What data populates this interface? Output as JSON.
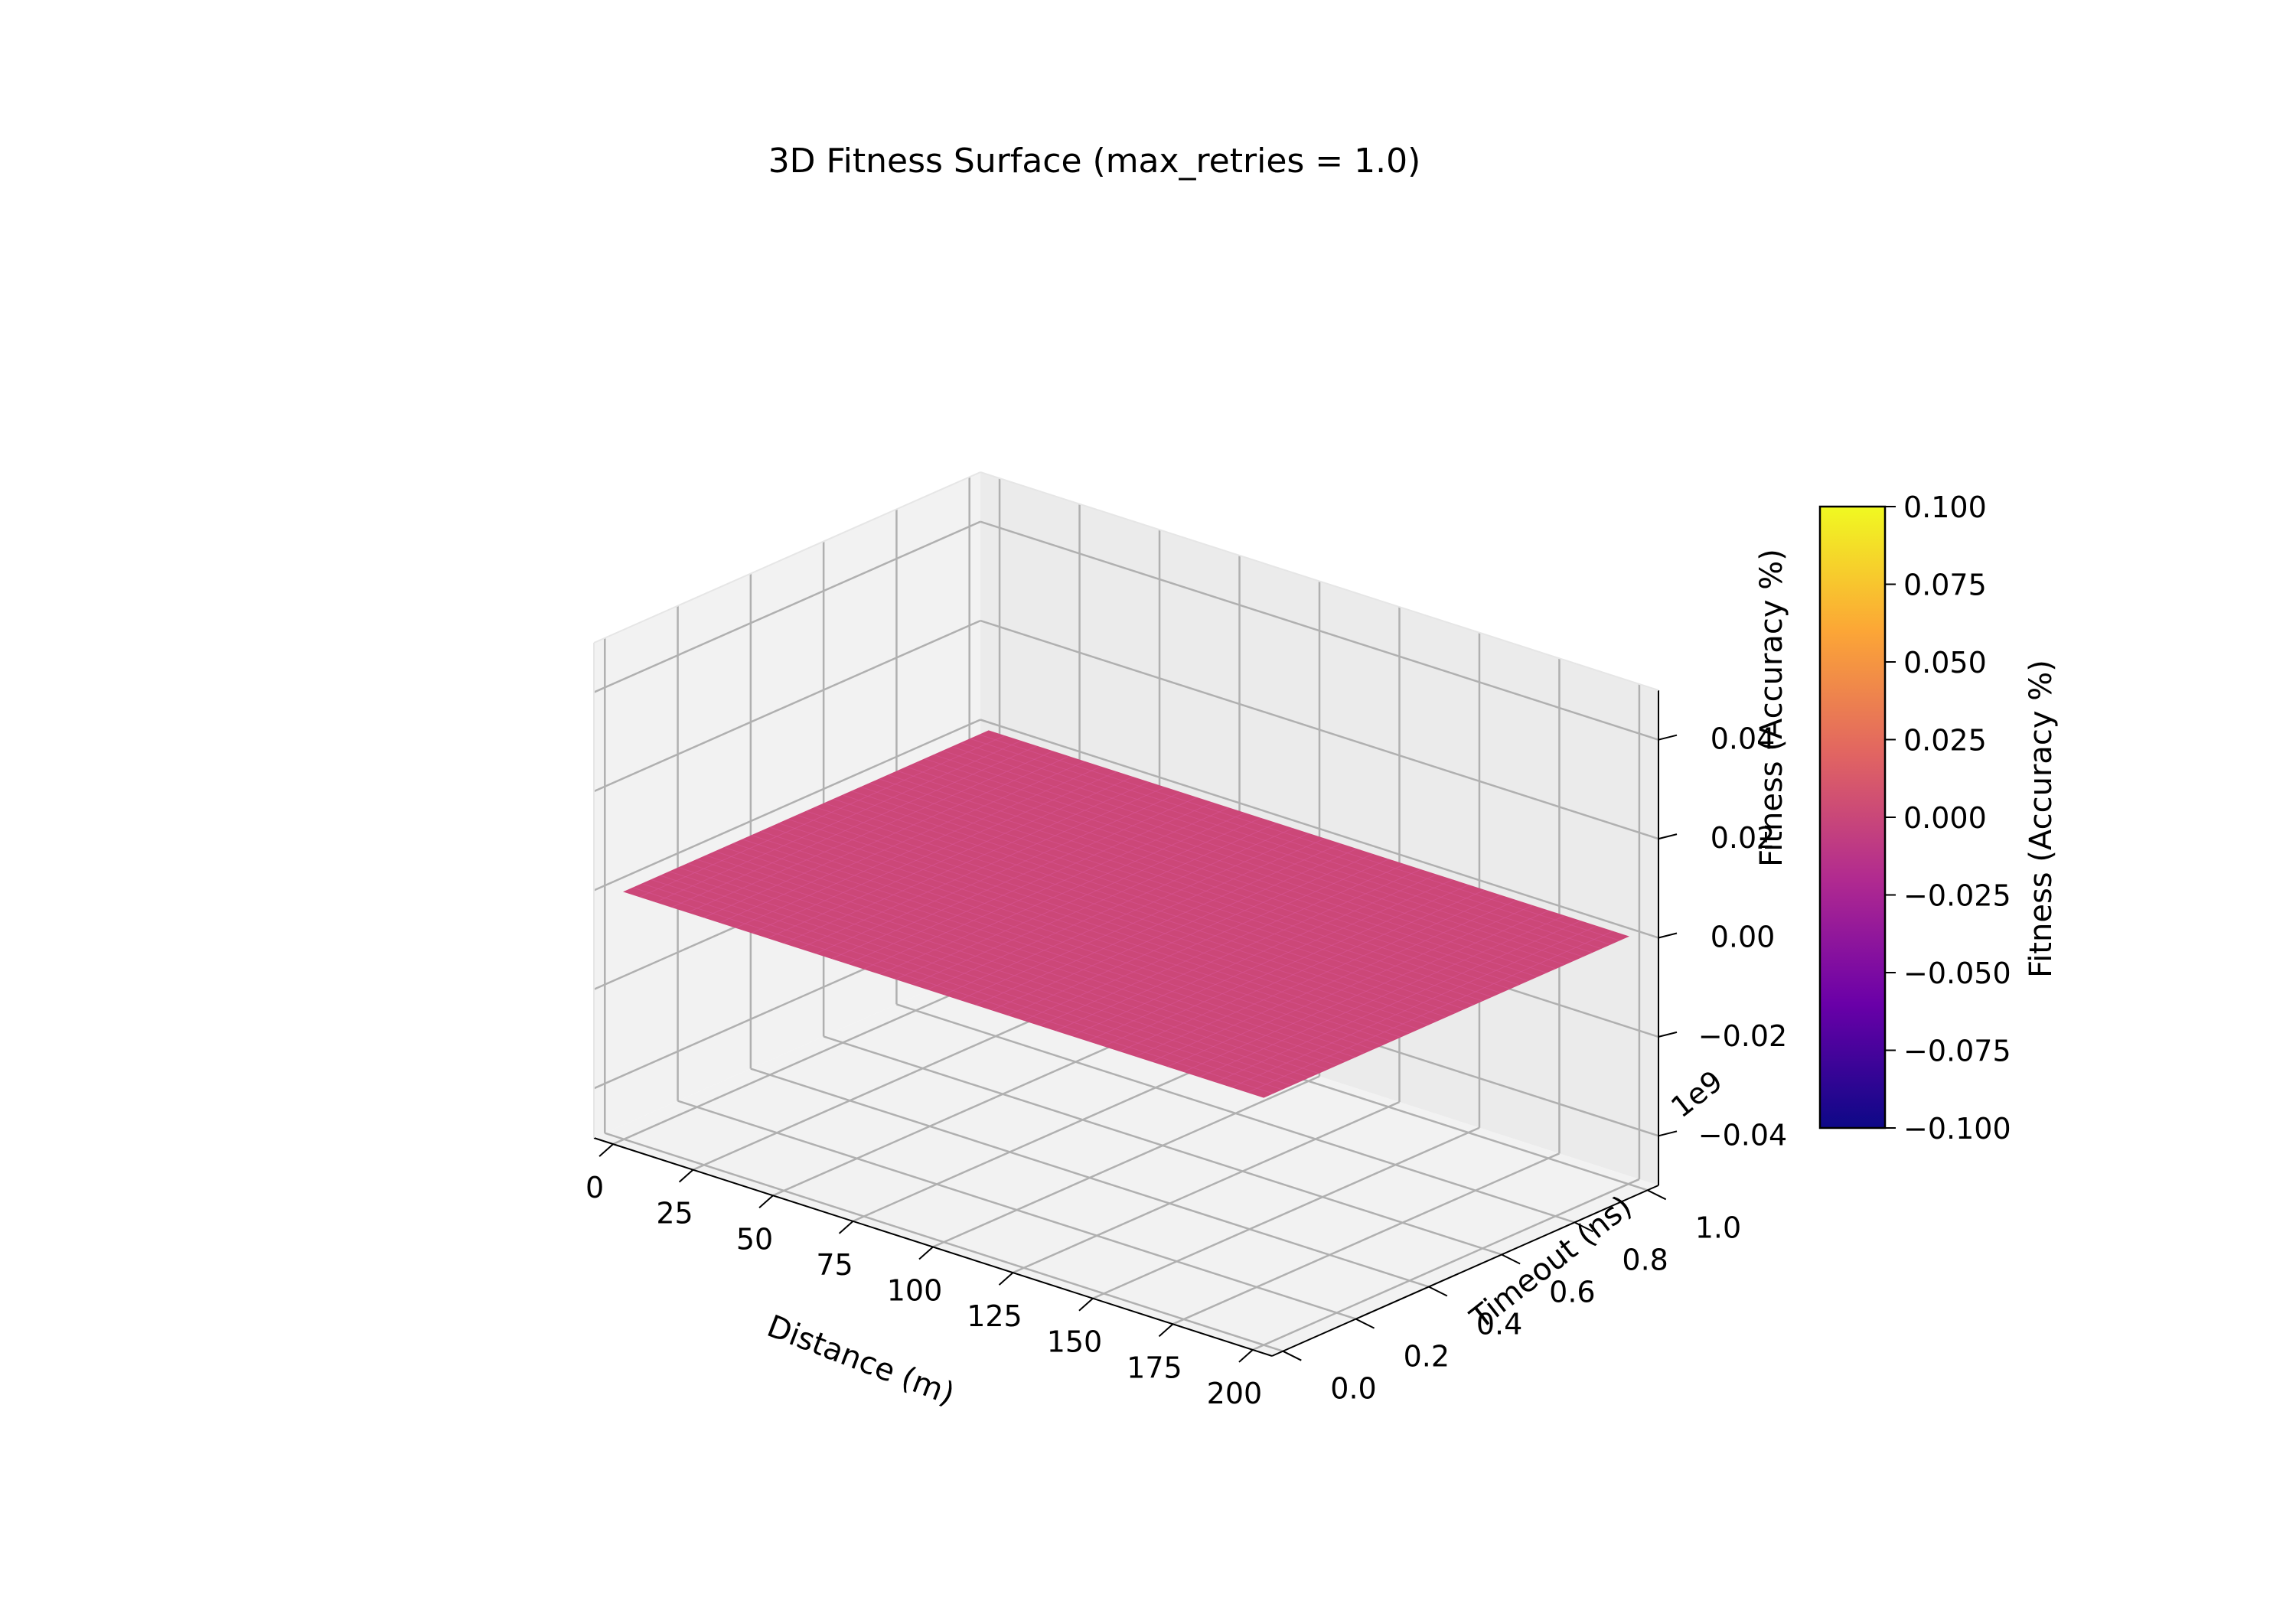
{
  "chart_data": {
    "type": "surface3d",
    "title": "3D Fitness Surface (max_retries = 1.0)",
    "x_axis": {
      "label": "Distance (m)",
      "ticks": [
        0,
        25,
        50,
        75,
        100,
        125,
        150,
        175,
        200
      ],
      "tick_labels": [
        "0",
        "25",
        "50",
        "75",
        "100",
        "125",
        "150",
        "175",
        "200"
      ],
      "range": [
        0,
        200
      ]
    },
    "y_axis": {
      "label": "Timeout (ns)",
      "ticks": [
        0.0,
        0.2,
        0.4,
        0.6,
        0.8,
        1.0
      ],
      "tick_labels": [
        "0.0",
        "0.2",
        "0.4",
        "0.6",
        "0.8",
        "1.0"
      ],
      "offset_label": "1e9",
      "range": [
        0,
        1.0
      ]
    },
    "z_axis": {
      "label": "Fitness (Accuracy %)",
      "ticks": [
        -0.04,
        -0.02,
        0.0,
        0.02,
        0.04
      ],
      "tick_labels": [
        "−0.04",
        "−0.02",
        "0.00",
        "0.02",
        "0.04"
      ],
      "range": [
        -0.05,
        0.05
      ]
    },
    "surface": {
      "x_range": [
        0,
        200
      ],
      "y_range": [
        0,
        1.0
      ],
      "z_value": 0.0,
      "color": "#cc4778"
    },
    "colorbar": {
      "label": "Fitness (Accuracy %)",
      "colormap": "plasma",
      "colors": [
        "#0d0887",
        "#6a00a8",
        "#b12a90",
        "#e16462",
        "#fca636",
        "#f0f921"
      ],
      "ticks": [
        -0.1,
        -0.075,
        -0.05,
        -0.025,
        0.0,
        0.025,
        0.05,
        0.075,
        0.1
      ],
      "tick_labels": [
        "−0.100",
        "−0.075",
        "−0.050",
        "−0.025",
        "0.000",
        "0.025",
        "0.050",
        "0.075",
        "0.100"
      ],
      "range": [
        -0.1,
        0.1
      ]
    },
    "grid": true
  }
}
